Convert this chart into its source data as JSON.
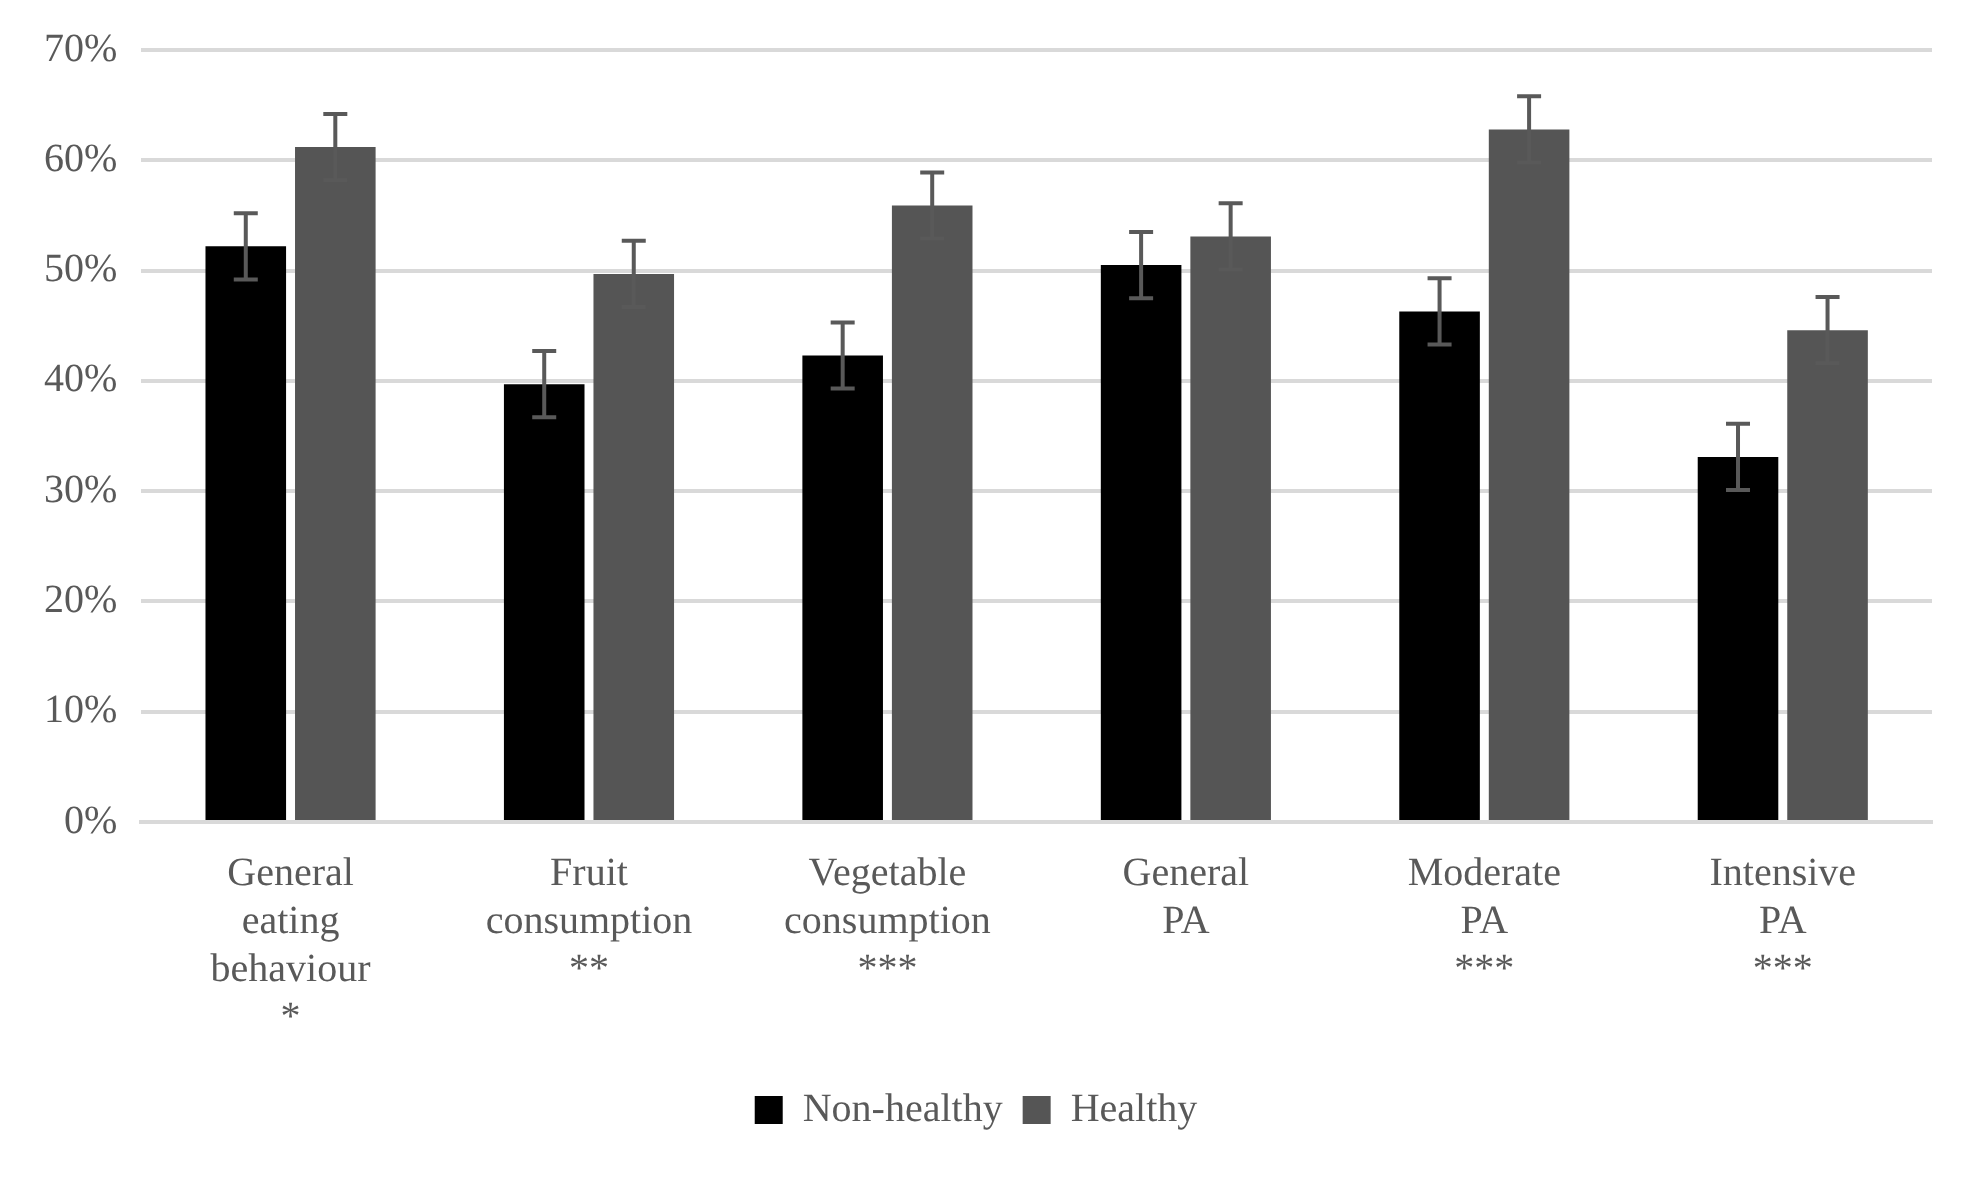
{
  "chart_data": {
    "type": "bar",
    "categories": [
      "General eating behaviour *",
      "Fruit consumption **",
      "Vegetable consumption ***",
      "General PA",
      "Moderate PA ***",
      "Intensive PA ***"
    ],
    "series": [
      {
        "name": "Non-healthy",
        "color": "#000000",
        "values": [
          52.2,
          39.7,
          42.3,
          50.5,
          46.3,
          33.1
        ],
        "errors": [
          3,
          3,
          3,
          3,
          3,
          3
        ]
      },
      {
        "name": "Healthy",
        "color": "#555555",
        "values": [
          61.2,
          49.7,
          55.9,
          53.1,
          62.8,
          44.6
        ],
        "errors": [
          3,
          3,
          3,
          3,
          3,
          3
        ]
      }
    ],
    "ylim": [
      0,
      70
    ],
    "yticks": [
      {
        "value": 0,
        "label": "0%"
      },
      {
        "value": 10,
        "label": "10%"
      },
      {
        "value": 20,
        "label": "20%"
      },
      {
        "value": 30,
        "label": "30%"
      },
      {
        "value": 40,
        "label": "40%"
      },
      {
        "value": 50,
        "label": "50%"
      },
      {
        "value": 60,
        "label": "60%"
      },
      {
        "value": 70,
        "label": "70%"
      }
    ],
    "grid": "y",
    "legend": "bottom"
  }
}
